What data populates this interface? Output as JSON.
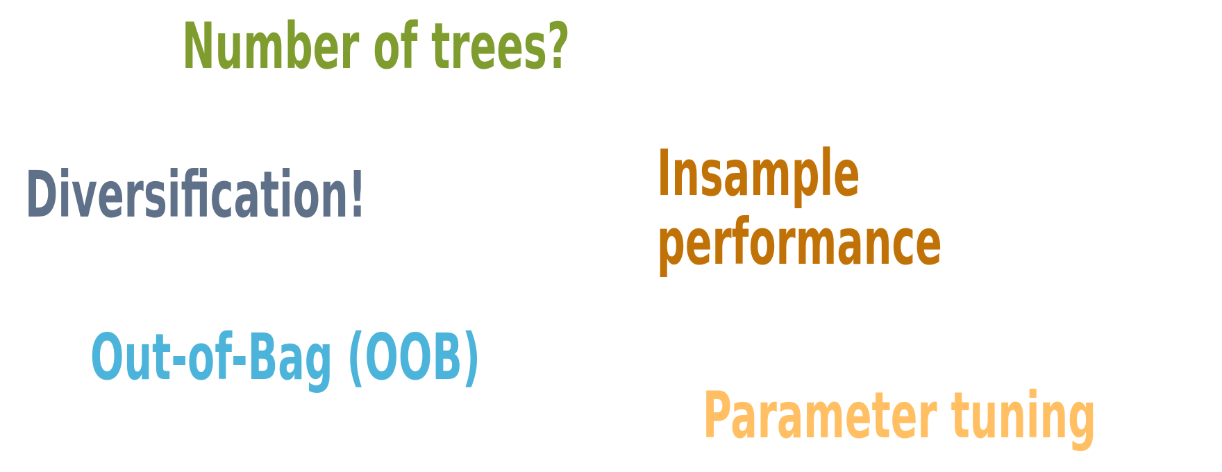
{
  "phrases": [
    {
      "text": "Number of trees?",
      "color": "#7f9c2f"
    },
    {
      "text": "Diversification!",
      "color": "#5f7189"
    },
    {
      "lines": [
        "Insample",
        "performance"
      ],
      "color": "#c17206"
    },
    {
      "text": "Out-of-Bag (OOB)",
      "color": "#4cb4da"
    },
    {
      "text": "Parameter tuning",
      "color": "#ffbf62"
    }
  ]
}
